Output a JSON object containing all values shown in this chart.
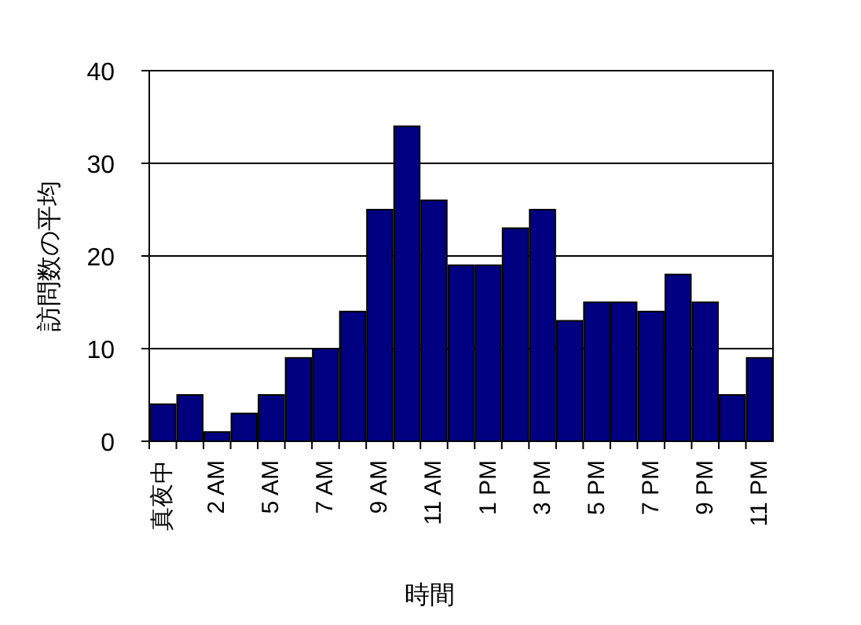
{
  "chart_data": {
    "type": "bar",
    "xlabel": "時間",
    "ylabel": "訪問数の平均",
    "categories": [
      "真夜中",
      null,
      "2 AM",
      null,
      "5 AM",
      null,
      "7 AM",
      null,
      "9 AM",
      null,
      "11 AM",
      null,
      "1 PM",
      null,
      "3 PM",
      null,
      "5 PM",
      null,
      "7 PM",
      null,
      "9 PM",
      null,
      "11 PM"
    ],
    "values": [
      4,
      5,
      1,
      3,
      5,
      9,
      10,
      14,
      25,
      34,
      26,
      19,
      19,
      23,
      25,
      13,
      15,
      15,
      14,
      18,
      15,
      5,
      9
    ],
    "color": "#000080",
    "ylim": [
      0,
      40
    ],
    "yticks": [
      0,
      10,
      20,
      30,
      40
    ],
    "grid": "y"
  }
}
